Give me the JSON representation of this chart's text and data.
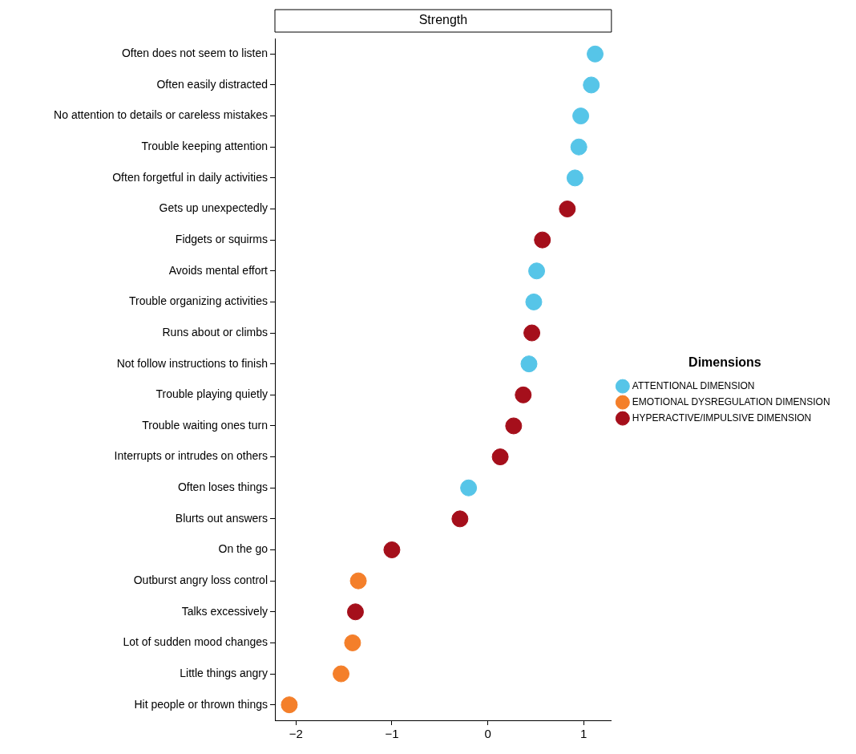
{
  "chart_data": {
    "type": "scatter",
    "orientation": "horizontal",
    "title": "Strength",
    "legend_title": "Dimensions",
    "legend": "right",
    "categories": [
      "Often does not seem to listen",
      "Often easily distracted",
      "No attention to details or careless mistakes",
      "Trouble keeping attention",
      "Often forgetful in daily activities",
      "Gets up unexpectedly",
      "Fidgets or squirms",
      "Avoids mental effort",
      "Trouble organizing activities",
      "Runs about or climbs",
      "Not follow instructions to finish",
      "Trouble playing quietly",
      "Trouble waiting ones turn",
      "Interrupts or intrudes on others",
      "Often loses things",
      "Blurts out answers",
      "On the go",
      "Outburst angry loss control",
      "Talks excessively",
      "Lot of sudden mood changes",
      "Little things angry",
      "Hit people or thrown things"
    ],
    "series": [
      {
        "name": "ATTENTIONAL DIMENSION",
        "color": "#56c5e8",
        "values": [
          1.12,
          1.08,
          0.97,
          0.95,
          0.91,
          null,
          null,
          0.51,
          0.48,
          null,
          0.43,
          null,
          null,
          null,
          -0.2,
          null,
          null,
          null,
          null,
          null,
          null,
          null
        ]
      },
      {
        "name": "EMOTIONAL DYSREGULATION DIMENSION",
        "color": "#f47f2a",
        "values": [
          null,
          null,
          null,
          null,
          null,
          null,
          null,
          null,
          null,
          null,
          null,
          null,
          null,
          null,
          null,
          null,
          null,
          -1.35,
          null,
          -1.41,
          -1.53,
          -2.07
        ]
      },
      {
        "name": "HYPERACTIVE/IMPULSIVE DIMENSION",
        "color": "#a50f1b",
        "values": [
          null,
          null,
          null,
          null,
          null,
          0.83,
          0.57,
          null,
          null,
          0.46,
          null,
          0.37,
          0.27,
          0.13,
          null,
          -0.29,
          -1.0,
          null,
          -1.38,
          null,
          null,
          null
        ]
      }
    ],
    "xlim": [
      -2.22,
      1.29
    ],
    "xticks": [
      -2,
      -1,
      0,
      1
    ],
    "grid": false,
    "marker": "circle"
  }
}
